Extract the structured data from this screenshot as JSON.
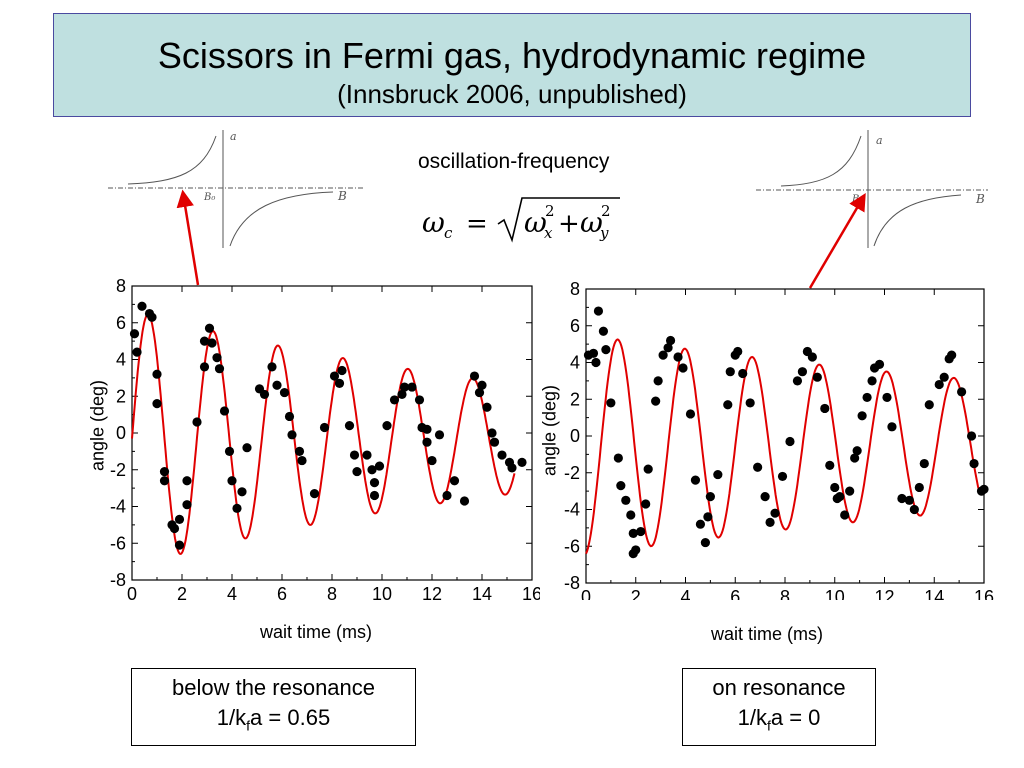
{
  "title": "Scissors in Fermi gas, hydrodynamic regime",
  "subtitle": "(Innsbruck 2006, unpublished)",
  "frequency_label": "oscillation-frequency",
  "formula": {
    "lhs": "ω",
    "lhs_sub": "c",
    "eq": "=",
    "t1": "ω",
    "t1_sub": "x",
    "t1_sup": "2",
    "plus": "+",
    "t2": "ω",
    "t2_sub": "y",
    "t2_sup": "2"
  },
  "insets": [
    {
      "a_label": "a",
      "b_label": "B",
      "b0_label": "B₀"
    },
    {
      "a_label": "a",
      "b_label": "B",
      "b0_label": "B₀"
    }
  ],
  "cases": [
    {
      "line1": "below the resonance",
      "line2_pre": "1/k",
      "line2_sub": "f",
      "line2_post": "a = 0.65"
    },
    {
      "line1": "on resonance",
      "line2_pre": "1/k",
      "line2_sub": "f",
      "line2_post": "a = 0"
    }
  ],
  "colors": {
    "fit": "#e00000",
    "points": "#000000",
    "arrow": "#e00000",
    "title_bg": "#bfe0e0"
  },
  "chart_data": [
    {
      "type": "scatter",
      "xlabel": "wait time (ms)",
      "ylabel": "angle (deg)",
      "xlim": [
        0,
        16
      ],
      "ylim": [
        -8,
        8
      ],
      "xticks": [
        0,
        2,
        4,
        6,
        8,
        10,
        12,
        14,
        16
      ],
      "yticks": [
        8,
        6,
        4,
        2,
        0,
        -2,
        -4,
        -6,
        -8
      ],
      "fit": {
        "amplitude": 7.0,
        "frequency_khz": 0.385,
        "phase_ms": 0.0,
        "decay_ms": 18,
        "offset": -0.3,
        "x_end": 15.3
      },
      "points": [
        [
          0.1,
          5.4
        ],
        [
          0.2,
          4.4
        ],
        [
          0.4,
          6.9
        ],
        [
          0.7,
          6.5
        ],
        [
          0.8,
          6.3
        ],
        [
          1.0,
          3.2
        ],
        [
          1.0,
          1.6
        ],
        [
          1.3,
          -2.1
        ],
        [
          1.3,
          -2.6
        ],
        [
          1.6,
          -5.0
        ],
        [
          1.7,
          -5.2
        ],
        [
          1.9,
          -4.7
        ],
        [
          1.9,
          -6.1
        ],
        [
          2.2,
          -3.9
        ],
        [
          2.2,
          -2.6
        ],
        [
          2.6,
          0.6
        ],
        [
          2.9,
          5.0
        ],
        [
          2.9,
          3.6
        ],
        [
          3.1,
          5.7
        ],
        [
          3.2,
          4.9
        ],
        [
          3.4,
          4.1
        ],
        [
          3.5,
          3.5
        ],
        [
          3.7,
          1.2
        ],
        [
          3.9,
          -1.0
        ],
        [
          4.0,
          -2.6
        ],
        [
          4.2,
          -4.1
        ],
        [
          4.4,
          -3.2
        ],
        [
          4.6,
          -0.8
        ],
        [
          5.1,
          2.4
        ],
        [
          5.3,
          2.1
        ],
        [
          5.6,
          3.6
        ],
        [
          5.8,
          2.6
        ],
        [
          6.1,
          2.2
        ],
        [
          6.3,
          0.9
        ],
        [
          6.4,
          -0.1
        ],
        [
          6.7,
          -1.0
        ],
        [
          6.8,
          -1.5
        ],
        [
          7.3,
          -3.3
        ],
        [
          7.7,
          0.3
        ],
        [
          8.1,
          3.1
        ],
        [
          8.3,
          2.7
        ],
        [
          8.4,
          3.4
        ],
        [
          8.7,
          0.4
        ],
        [
          8.9,
          -1.2
        ],
        [
          9.0,
          -2.1
        ],
        [
          9.4,
          -1.2
        ],
        [
          9.6,
          -2.0
        ],
        [
          9.7,
          -2.7
        ],
        [
          9.7,
          -3.4
        ],
        [
          9.9,
          -1.8
        ],
        [
          10.2,
          0.4
        ],
        [
          10.5,
          1.8
        ],
        [
          10.8,
          2.1
        ],
        [
          10.9,
          2.5
        ],
        [
          11.2,
          2.5
        ],
        [
          11.5,
          1.8
        ],
        [
          11.6,
          0.3
        ],
        [
          11.8,
          0.2
        ],
        [
          11.8,
          -0.5
        ],
        [
          12.0,
          -1.5
        ],
        [
          12.3,
          -0.1
        ],
        [
          12.6,
          -3.4
        ],
        [
          12.9,
          -2.6
        ],
        [
          13.3,
          -3.7
        ],
        [
          13.7,
          3.1
        ],
        [
          13.9,
          2.2
        ],
        [
          14.0,
          2.6
        ],
        [
          14.2,
          1.4
        ],
        [
          14.4,
          0.0
        ],
        [
          14.5,
          -0.5
        ],
        [
          14.8,
          -1.2
        ],
        [
          15.1,
          -1.6
        ],
        [
          15.2,
          -1.9
        ],
        [
          15.6,
          -1.6
        ]
      ]
    },
    {
      "type": "scatter",
      "xlabel": "wait time (ms)",
      "ylabel": "angle (deg)",
      "xlim": [
        0,
        16
      ],
      "ylim": [
        -8,
        8
      ],
      "xticks": [
        0,
        2,
        4,
        6,
        8,
        10,
        12,
        14,
        16
      ],
      "yticks": [
        8,
        6,
        4,
        2,
        0,
        -2,
        -4,
        -6,
        -8
      ],
      "fit": {
        "amplitude": 6.0,
        "frequency_khz": 0.37,
        "phase_ms": 0.6,
        "decay_ms": 30,
        "offset": -0.5,
        "x_end": 15.8
      },
      "points": [
        [
          0.1,
          4.4
        ],
        [
          0.3,
          4.5
        ],
        [
          0.4,
          4.0
        ],
        [
          0.5,
          6.8
        ],
        [
          0.7,
          5.7
        ],
        [
          0.8,
          4.7
        ],
        [
          1.0,
          1.8
        ],
        [
          1.3,
          -1.2
        ],
        [
          1.4,
          -2.7
        ],
        [
          1.6,
          -3.5
        ],
        [
          1.8,
          -4.3
        ],
        [
          1.9,
          -5.3
        ],
        [
          1.9,
          -6.4
        ],
        [
          2.0,
          -6.2
        ],
        [
          2.2,
          -5.2
        ],
        [
          2.4,
          -3.7
        ],
        [
          2.5,
          -1.8
        ],
        [
          2.8,
          1.9
        ],
        [
          2.9,
          3.0
        ],
        [
          3.1,
          4.4
        ],
        [
          3.3,
          4.8
        ],
        [
          3.4,
          5.2
        ],
        [
          3.7,
          4.3
        ],
        [
          3.9,
          3.7
        ],
        [
          4.2,
          1.2
        ],
        [
          4.4,
          -2.4
        ],
        [
          4.6,
          -4.8
        ],
        [
          4.8,
          -5.8
        ],
        [
          4.9,
          -4.4
        ],
        [
          5.0,
          -3.3
        ],
        [
          5.3,
          -2.1
        ],
        [
          5.7,
          1.7
        ],
        [
          5.8,
          3.5
        ],
        [
          6.0,
          4.4
        ],
        [
          6.1,
          4.6
        ],
        [
          6.3,
          3.4
        ],
        [
          6.6,
          1.8
        ],
        [
          6.9,
          -1.7
        ],
        [
          7.2,
          -3.3
        ],
        [
          7.4,
          -4.7
        ],
        [
          7.6,
          -4.2
        ],
        [
          7.9,
          -2.2
        ],
        [
          8.2,
          -0.3
        ],
        [
          8.5,
          3.0
        ],
        [
          8.7,
          3.5
        ],
        [
          8.9,
          4.6
        ],
        [
          9.1,
          4.3
        ],
        [
          9.3,
          3.2
        ],
        [
          9.6,
          1.5
        ],
        [
          9.8,
          -1.6
        ],
        [
          10.0,
          -2.8
        ],
        [
          10.1,
          -3.4
        ],
        [
          10.2,
          -3.3
        ],
        [
          10.4,
          -4.3
        ],
        [
          10.6,
          -3.0
        ],
        [
          10.8,
          -1.2
        ],
        [
          10.9,
          -0.8
        ],
        [
          11.1,
          1.1
        ],
        [
          11.3,
          2.1
        ],
        [
          11.5,
          3.0
        ],
        [
          11.6,
          3.7
        ],
        [
          11.8,
          3.9
        ],
        [
          12.1,
          2.1
        ],
        [
          12.3,
          0.5
        ],
        [
          12.7,
          -3.4
        ],
        [
          13.0,
          -3.5
        ],
        [
          13.2,
          -4.0
        ],
        [
          13.4,
          -2.8
        ],
        [
          13.6,
          -1.5
        ],
        [
          13.8,
          1.7
        ],
        [
          14.2,
          2.8
        ],
        [
          14.4,
          3.2
        ],
        [
          14.6,
          4.2
        ],
        [
          14.7,
          4.4
        ],
        [
          15.1,
          2.4
        ],
        [
          15.5,
          0.0
        ],
        [
          15.6,
          -1.5
        ],
        [
          15.9,
          -3.0
        ],
        [
          16.0,
          -2.9
        ]
      ]
    }
  ]
}
